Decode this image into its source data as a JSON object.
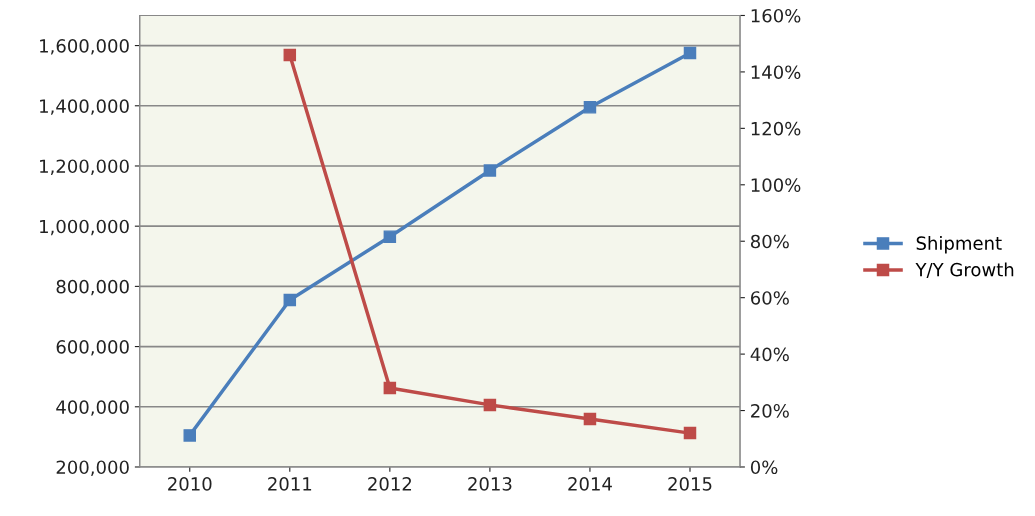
{
  "chart_data": {
    "type": "line",
    "categories": [
      "2010",
      "2011",
      "2012",
      "2013",
      "2014",
      "2015"
    ],
    "series": [
      {
        "name": "Shipment",
        "color": "#4a7ebb",
        "values": [
          305000,
          755000,
          965000,
          1185000,
          1395000,
          1575000
        ]
      },
      {
        "name": "Y/Y Growth",
        "color": "#be4b48",
        "axis": "y2",
        "values": [
          null,
          146,
          28,
          22,
          17,
          12
        ]
      }
    ],
    "ylim": [
      200000,
      1700000
    ],
    "yticks": [
      {
        "value": 200000,
        "label": "200,000"
      },
      {
        "value": 400000,
        "label": "400,000"
      },
      {
        "value": 600000,
        "label": "600,000"
      },
      {
        "value": 800000,
        "label": "800,000"
      },
      {
        "value": 1000000,
        "label": "1,000,000"
      },
      {
        "value": 1200000,
        "label": "1,200,000"
      },
      {
        "value": 1400000,
        "label": "1,400,000"
      },
      {
        "value": 1600000,
        "label": "1,600,000"
      }
    ],
    "y2lim": [
      0,
      160
    ],
    "y2ticks": [
      {
        "value": 0,
        "label": "0%"
      },
      {
        "value": 20,
        "label": "20%"
      },
      {
        "value": 40,
        "label": "40%"
      },
      {
        "value": 60,
        "label": "60%"
      },
      {
        "value": 80,
        "label": "80%"
      },
      {
        "value": 100,
        "label": "100%"
      },
      {
        "value": 120,
        "label": "120%"
      },
      {
        "value": 140,
        "label": "140%"
      },
      {
        "value": 160,
        "label": "160%"
      }
    ],
    "grid": "y",
    "legend": "right",
    "marker": "square",
    "line_style": "solid"
  }
}
